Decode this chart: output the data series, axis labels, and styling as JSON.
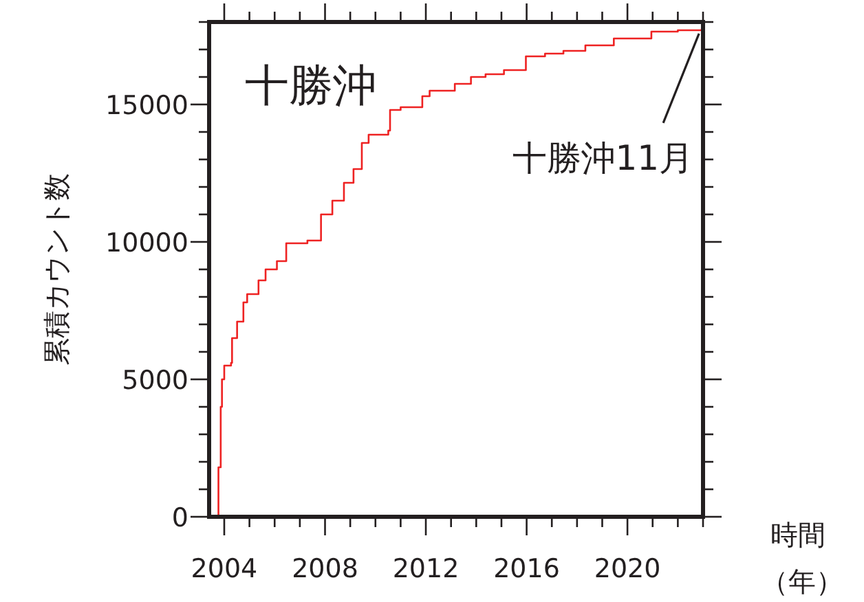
{
  "chart_data": {
    "type": "step",
    "ylabel": "累積カウント数",
    "xlabel": "時間（年）",
    "annotations": [
      "十勝沖",
      {
        "text": "十勝沖11月",
        "x": 2022.95,
        "y": 17780
      }
    ],
    "xlim": [
      2003.4,
      2023.0
    ],
    "xticks": [
      2004,
      {
        "value": 2005,
        "label": null
      },
      {
        "value": 2006,
        "label": null
      },
      {
        "value": 2007,
        "label": null
      },
      2008,
      {
        "value": 2009,
        "label": null
      },
      {
        "value": 2010,
        "label": null
      },
      {
        "value": 2011,
        "label": null
      },
      2012,
      {
        "value": 2013,
        "label": null
      },
      {
        "value": 2014,
        "label": null
      },
      {
        "value": 2015,
        "label": null
      },
      2016,
      {
        "value": 2017,
        "label": null
      },
      {
        "value": 2018,
        "label": null
      },
      {
        "value": 2019,
        "label": null
      },
      2020,
      {
        "value": 2021,
        "label": null
      },
      {
        "value": 2022,
        "label": null
      },
      {
        "value": 2023,
        "label": null
      }
    ],
    "ylim": [
      0,
      18000
    ],
    "yticks": [
      0,
      {
        "value": 1000,
        "label": null
      },
      {
        "value": 2000,
        "label": null
      },
      {
        "value": 3000,
        "label": null
      },
      {
        "value": 4000,
        "label": null
      },
      5000,
      {
        "value": 6000,
        "label": null
      },
      {
        "value": 7000,
        "label": null
      },
      {
        "value": 8000,
        "label": null
      },
      {
        "value": 9000,
        "label": null
      },
      10000,
      {
        "value": 11000,
        "label": null
      },
      {
        "value": 12000,
        "label": null
      },
      {
        "value": 13000,
        "label": null
      },
      {
        "value": 14000,
        "label": null
      },
      15000,
      {
        "value": 16000,
        "label": null
      },
      {
        "value": 17000,
        "label": null
      },
      {
        "value": 18000,
        "label": null
      }
    ],
    "grid": false,
    "series": [
      {
        "color": "#ee2222",
        "x": [
          2003.73,
          2003.77,
          2003.86,
          2003.91,
          2004.0,
          2004.27,
          2004.31,
          2004.51,
          2004.76,
          2004.91,
          2005.36,
          2005.64,
          2006.09,
          2006.46,
          2007.3,
          2007.84,
          2008.29,
          2008.75,
          2009.13,
          2009.46,
          2009.73,
          2010.51,
          2010.58,
          2011.0,
          2011.86,
          2012.15,
          2013.15,
          2013.79,
          2014.37,
          2015.1,
          2015.97,
          2016.73,
          2017.46,
          2018.33,
          2019.46,
          2020.95,
          2022.0,
          2022.95
        ],
        "values": [
          0,
          1800,
          4000,
          5000,
          5500,
          5600,
          6500,
          7100,
          7800,
          8100,
          8600,
          9000,
          9300,
          9950,
          10050,
          11000,
          11500,
          12150,
          12650,
          13600,
          13900,
          14050,
          14800,
          14900,
          15300,
          15500,
          15750,
          16000,
          16100,
          16250,
          16750,
          16850,
          16950,
          17150,
          17400,
          17650,
          17700,
          17780
        ]
      }
    ]
  }
}
